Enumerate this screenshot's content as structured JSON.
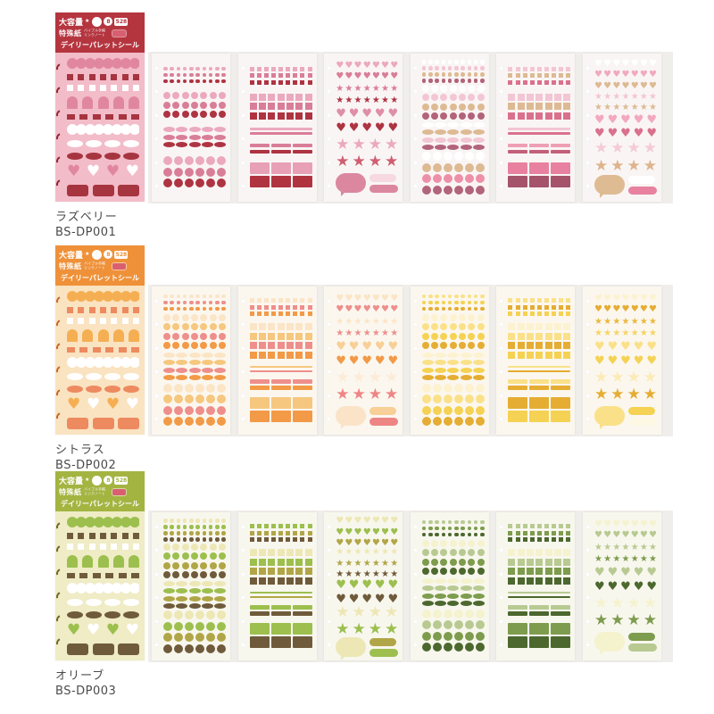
{
  "icons": {
    "heart": "♥",
    "star": "★",
    "header_star": "★"
  },
  "colors": {
    "page_bg": "#ffffff",
    "photo_backdrop": "#f0eeeb",
    "label_text": "#4b4b4b",
    "tag": "#d95f70"
  },
  "package_header": {
    "capacity_label": "大容量",
    "badge_sheet_count": "8",
    "badge_piece_count": "528",
    "paper_label": "特殊紙",
    "paper_sub_line1": "バイブル手帳",
    "paper_sub_line2": "リンクノート",
    "product_name": "デイリーパレットシール"
  },
  "products": [
    {
      "name": "ラズベリー",
      "code": "BS-DP001",
      "colors": {
        "header_bg": "#b5353f",
        "body_bg": "#f3bcc9",
        "art_light": "#ffffff",
        "art_mid": "#e0879f",
        "art_dark": "#a63540",
        "hook": "#8e2a33",
        "sheet_bg": "#faf5f5"
      },
      "sheets": [
        {
          "type": "dots",
          "groups": [
            [
              "#eba9bf",
              "#d97e98",
              "#ae3442"
            ],
            [
              "#eba9bf",
              "#d97e98",
              "#ae3442"
            ],
            [
              "#eba9bf",
              "#d97e98",
              "#ae3442"
            ],
            [
              "#eba9bf",
              "#d97e98",
              "#ae3442"
            ]
          ]
        },
        {
          "type": "squares",
          "groups": [
            [
              "#eba9bf",
              "#d97e98",
              "#ae3442"
            ],
            [
              "#eba9bf",
              "#d97e98",
              "#ae3442"
            ],
            [
              "#eba9bf",
              "#d97e98"
            ],
            [
              "#d97e98",
              "#ae3442"
            ],
            [
              "#e8a0b6",
              "#b03440"
            ]
          ]
        },
        {
          "type": "shapes",
          "groups": [
            [
              "#eba9bf",
              "#d97e98"
            ],
            [
              "#d97e98",
              "#ae3442"
            ],
            [
              "#de8fa6",
              "#ae3442"
            ],
            [
              "#eba9bf",
              "#ce5e71"
            ],
            [
              "#db87a0",
              "#f6d9e2",
              "#db87a0"
            ]
          ]
        },
        {
          "type": "dots",
          "groups": [
            [
              "#ffffff",
              "#f2c6d4",
              "#ddba93",
              "#b2647a"
            ],
            [
              "#ffffff",
              "#f2c6d4",
              "#ddba93",
              "#b2647a"
            ],
            [
              "#ffffff",
              "#ddba93",
              "#f2c6d4",
              "#b2647a"
            ],
            [
              "#ffffff",
              "#ddba93",
              "#ee8fa8",
              "#b2647a"
            ]
          ]
        },
        {
          "type": "squares",
          "groups": [
            [
              "#f2c6d4",
              "#ddba93",
              "#d9718d"
            ],
            [
              "#f2c6d4",
              "#ddba93",
              "#d9718d"
            ],
            [
              "#f2c6d4",
              "#d9718d"
            ],
            [
              "#ee9fb5",
              "#c2607a"
            ],
            [
              "#e8819f",
              "#a5536a"
            ]
          ]
        },
        {
          "type": "shapes",
          "groups": [
            [
              "#ffffff",
              "#f0a9c0",
              "#ddba93"
            ],
            [
              "#f2c6d4",
              "#ddba93"
            ],
            [
              "#f2a9be",
              "#d9718d"
            ],
            [
              "#f4cbd7",
              "#ddb48c"
            ],
            [
              "#dfbb94",
              "#ffffff",
              "#e8819f"
            ]
          ]
        }
      ]
    },
    {
      "name": "シトラス",
      "code": "BS-DP002",
      "colors": {
        "header_bg": "#ef9139",
        "body_bg": "#fae3c1",
        "art_light": "#ffffff",
        "art_mid": "#f5af52",
        "art_dark": "#ed8a60",
        "hook": "#c56a2a",
        "sheet_bg": "#fbf7ef"
      },
      "sheets": [
        {
          "type": "dots",
          "groups": [
            [
              "#fbe5c6",
              "#ee8f8c",
              "#f29a47"
            ],
            [
              "#fbe5c6",
              "#f6c77e",
              "#ee8f8c",
              "#f29a47"
            ],
            [
              "#fbe5c6",
              "#f6c77e",
              "#ee8f8c",
              "#f29a47"
            ],
            [
              "#fbe5c6",
              "#f6c77e",
              "#ee8f8c",
              "#f29a47"
            ]
          ]
        },
        {
          "type": "squares",
          "groups": [
            [
              "#fbe5c6",
              "#ee8f8c",
              "#f29a47"
            ],
            [
              "#fbe5c6",
              "#f6c77e",
              "#ee8f8c",
              "#f29a47"
            ],
            [
              "#f6c77e",
              "#ee8f8c"
            ],
            [
              "#ee8f8c",
              "#f29a47"
            ],
            [
              "#f6c77e",
              "#f29a47"
            ]
          ]
        },
        {
          "type": "shapes",
          "groups": [
            [
              "#fbe5c6",
              "#ee8f8c"
            ],
            [
              "#fbe5c6",
              "#ee8f8c"
            ],
            [
              "#f8cf96",
              "#f29a47"
            ],
            [
              "#fcebd8",
              "#ee8585"
            ],
            [
              "#fbe3c8",
              "#f8cf96",
              "#ee8585"
            ]
          ]
        },
        {
          "type": "dots",
          "groups": [
            [
              "#fae189",
              "#f5d253",
              "#e5ad33"
            ],
            [
              "#fdf2cf",
              "#fae189",
              "#f5d253",
              "#e5ad33"
            ],
            [
              "#fdf2cf",
              "#fae189",
              "#f5d253",
              "#e5ad33"
            ],
            [
              "#fdf2cf",
              "#fae189",
              "#f5d253",
              "#e5ad33"
            ]
          ]
        },
        {
          "type": "squares",
          "groups": [
            [
              "#fae189",
              "#e5ad33",
              "#f5d253"
            ],
            [
              "#fdf2cf",
              "#fae189",
              "#e5ad33",
              "#f5d253"
            ],
            [
              "#fae189",
              "#e5ad33"
            ],
            [
              "#fae189",
              "#e5ad33"
            ],
            [
              "#e5ad33",
              "#f5d253"
            ]
          ]
        },
        {
          "type": "shapes",
          "groups": [
            [
              "#fdf2cf",
              "#e5ad33"
            ],
            [
              "#e9b83e",
              "#f5d462"
            ],
            [
              "#fae189",
              "#f5d253"
            ],
            [
              "#fbebb5",
              "#e5ad33"
            ],
            [
              "#fae189",
              "#f5d253",
              "#fdf8e3"
            ]
          ]
        }
      ]
    },
    {
      "name": "オリーブ",
      "code": "BS-DP003",
      "colors": {
        "header_bg": "#a4b441",
        "body_bg": "#efecc6",
        "art_light": "#ffffff",
        "art_mid": "#9cbf4e",
        "art_dark": "#6f5b3b",
        "hook": "#73662a",
        "sheet_bg": "#f8f7ee"
      },
      "sheets": [
        {
          "type": "dots",
          "groups": [
            [
              "#ede7b5",
              "#9cbf4e",
              "#b1a647",
              "#6f5b3b"
            ],
            [
              "#ede7b5",
              "#9cbf4e",
              "#b1a647",
              "#6f5b3b"
            ],
            [
              "#ede7b5",
              "#9cbf4e",
              "#b1a647",
              "#6f5b3b"
            ],
            [
              "#ede7b5",
              "#9cbf4e",
              "#b1a647",
              "#6f5b3b"
            ]
          ]
        },
        {
          "type": "squares",
          "groups": [
            [
              "#9cbf4e",
              "#b1a647",
              "#6f5b3b"
            ],
            [
              "#ede7b5",
              "#9cbf4e",
              "#b1a647",
              "#6f5b3b"
            ],
            [
              "#9cbf4e",
              "#b1a647"
            ],
            [
              "#9cbf4e",
              "#6f5b3b"
            ],
            [
              "#9cbf4e",
              "#6f5b3b"
            ]
          ]
        },
        {
          "type": "shapes",
          "groups": [
            [
              "#ede7b5",
              "#9cbf4e",
              "#b1a647"
            ],
            [
              "#ede7b5",
              "#b1a647",
              "#6f5b3b"
            ],
            [
              "#9cbf4e",
              "#6f5b3b"
            ],
            [
              "#ede7b5",
              "#9cbf4e"
            ],
            [
              "#ede7b5",
              "#b1a647",
              "#9cbf4e"
            ]
          ]
        },
        {
          "type": "dots",
          "groups": [
            [
              "#b8ca92",
              "#7d9c4d",
              "#4c682f"
            ],
            [
              "#f5f2ce",
              "#b8ca92",
              "#7d9c4d",
              "#4c682f"
            ],
            [
              "#f5f2ce",
              "#b8ca92",
              "#7d9c4d",
              "#4c682f"
            ],
            [
              "#f5f2ce",
              "#b8ca92",
              "#7d9c4d",
              "#4c682f"
            ]
          ]
        },
        {
          "type": "squares",
          "groups": [
            [
              "#b8ca92",
              "#7d9c4d",
              "#4c682f"
            ],
            [
              "#f5f2ce",
              "#b8ca92",
              "#7d9c4d",
              "#4c682f"
            ],
            [
              "#b8ca92",
              "#4c682f"
            ],
            [
              "#b8ca92",
              "#4c682f"
            ],
            [
              "#7d9c4d",
              "#4c682f"
            ]
          ]
        },
        {
          "type": "shapes",
          "groups": [
            [
              "#f5f2ce",
              "#b8ca92"
            ],
            [
              "#b8ca92",
              "#7d9c4d"
            ],
            [
              "#b8ca92",
              "#4c682f"
            ],
            [
              "#f5f2ce",
              "#7d9c4d"
            ],
            [
              "#f5f2ce",
              "#7d9c4d",
              "#b8ca92"
            ]
          ]
        }
      ]
    }
  ]
}
